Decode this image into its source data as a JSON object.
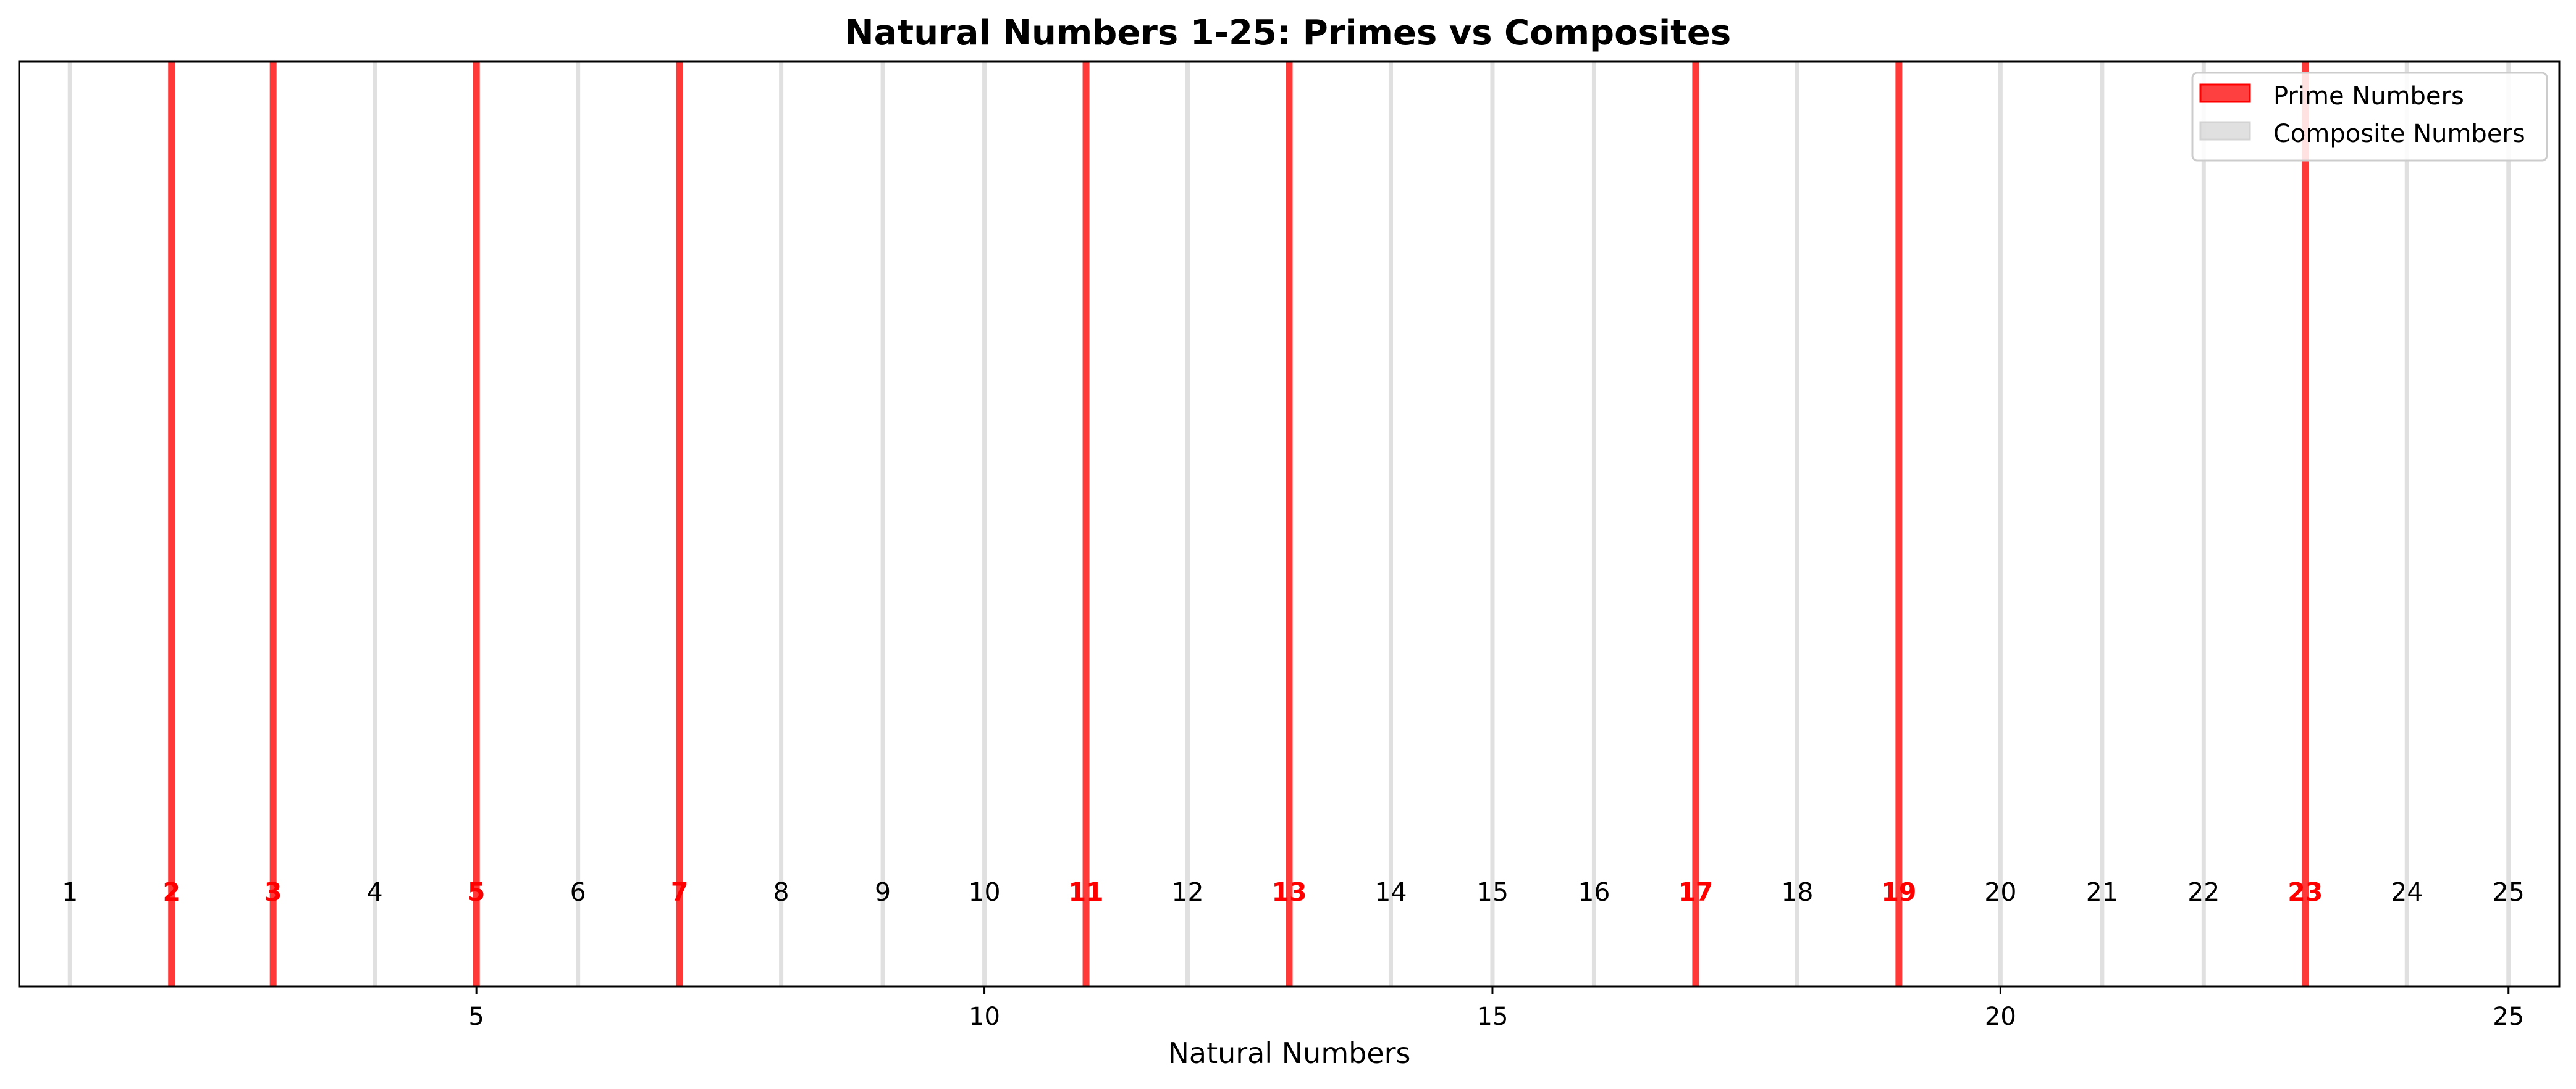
{
  "chart_data": {
    "type": "bar",
    "title": "Natural Numbers 1-25: Primes vs Composites",
    "xlabel": "Natural Numbers",
    "ylabel": "",
    "xlim": [
      0.5,
      25.5
    ],
    "x_ticks": [
      5,
      10,
      15,
      20,
      25
    ],
    "grid": false,
    "legend_position": "top-right",
    "numbers": [
      1,
      2,
      3,
      4,
      5,
      6,
      7,
      8,
      9,
      10,
      11,
      12,
      13,
      14,
      15,
      16,
      17,
      18,
      19,
      20,
      21,
      22,
      23,
      24,
      25
    ],
    "primes": [
      2,
      3,
      5,
      7,
      11,
      13,
      17,
      19,
      23
    ],
    "series": [
      {
        "name": "Prime Numbers",
        "color": "#ff0000",
        "values": [
          2,
          3,
          5,
          7,
          11,
          13,
          17,
          19,
          23
        ]
      },
      {
        "name": "Composite Numbers",
        "color": "#d3d3d3",
        "values": [
          1,
          4,
          6,
          8,
          9,
          10,
          12,
          14,
          15,
          16,
          18,
          20,
          21,
          22,
          24,
          25
        ]
      }
    ]
  }
}
